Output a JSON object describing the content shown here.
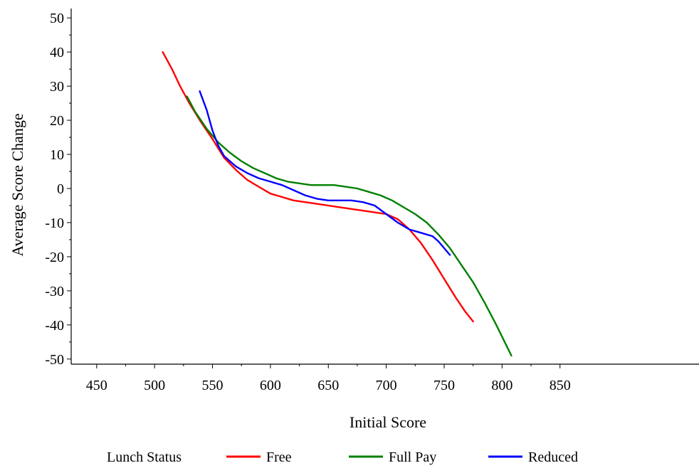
{
  "chart_data": {
    "type": "line",
    "xlabel": "Initial Score",
    "ylabel": "Average Score Change",
    "xlim": [
      428,
      970
    ],
    "ylim": [
      -51.5,
      51.5
    ],
    "x_ticks": [
      450,
      500,
      550,
      600,
      650,
      700,
      750,
      800,
      850
    ],
    "y_ticks": [
      50,
      40,
      30,
      20,
      10,
      0,
      -10,
      -20,
      -30,
      -40,
      -50
    ],
    "grid": false,
    "legend": {
      "title": "Lunch Status",
      "position": "bottom"
    },
    "series": [
      {
        "name": "Free",
        "color": "#ff0000",
        "points": [
          [
            507,
            40
          ],
          [
            515,
            35
          ],
          [
            522,
            30
          ],
          [
            530,
            25
          ],
          [
            540,
            19.5
          ],
          [
            550,
            14.5
          ],
          [
            560,
            9
          ],
          [
            570,
            5.5
          ],
          [
            580,
            2.5
          ],
          [
            590,
            0.5
          ],
          [
            600,
            -1.5
          ],
          [
            610,
            -2.5
          ],
          [
            620,
            -3.5
          ],
          [
            630,
            -4
          ],
          [
            640,
            -4.5
          ],
          [
            650,
            -5
          ],
          [
            660,
            -5.5
          ],
          [
            670,
            -6
          ],
          [
            680,
            -6.5
          ],
          [
            690,
            -7
          ],
          [
            700,
            -7.5
          ],
          [
            710,
            -9
          ],
          [
            720,
            -12
          ],
          [
            730,
            -16
          ],
          [
            740,
            -21
          ],
          [
            750,
            -26.5
          ],
          [
            760,
            -32
          ],
          [
            768,
            -36
          ],
          [
            775,
            -39
          ]
        ]
      },
      {
        "name": "Full Pay",
        "color": "#008000",
        "points": [
          [
            528,
            27
          ],
          [
            535,
            22.5
          ],
          [
            545,
            17.5
          ],
          [
            555,
            13.5
          ],
          [
            565,
            10.5
          ],
          [
            575,
            8
          ],
          [
            585,
            6
          ],
          [
            595,
            4.5
          ],
          [
            605,
            3
          ],
          [
            615,
            2
          ],
          [
            625,
            1.5
          ],
          [
            635,
            1
          ],
          [
            645,
            1
          ],
          [
            655,
            1
          ],
          [
            665,
            0.5
          ],
          [
            675,
            0
          ],
          [
            685,
            -1
          ],
          [
            695,
            -2
          ],
          [
            705,
            -3.5
          ],
          [
            715,
            -5.5
          ],
          [
            725,
            -7.5
          ],
          [
            735,
            -10
          ],
          [
            745,
            -13.5
          ],
          [
            755,
            -17.5
          ],
          [
            765,
            -22.5
          ],
          [
            775,
            -27.5
          ],
          [
            785,
            -33.5
          ],
          [
            795,
            -40
          ],
          [
            808,
            -49
          ]
        ]
      },
      {
        "name": "Reduced",
        "color": "#0000ff",
        "points": [
          [
            539,
            28.5
          ],
          [
            545,
            23
          ],
          [
            550,
            17
          ],
          [
            555,
            12.5
          ],
          [
            560,
            9.5
          ],
          [
            570,
            6.5
          ],
          [
            580,
            4.5
          ],
          [
            590,
            3
          ],
          [
            600,
            2
          ],
          [
            610,
            1
          ],
          [
            620,
            -0.5
          ],
          [
            630,
            -2
          ],
          [
            640,
            -3
          ],
          [
            650,
            -3.5
          ],
          [
            660,
            -3.5
          ],
          [
            670,
            -3.5
          ],
          [
            680,
            -4
          ],
          [
            690,
            -5
          ],
          [
            700,
            -7.5
          ],
          [
            710,
            -10
          ],
          [
            720,
            -12
          ],
          [
            730,
            -13
          ],
          [
            740,
            -14
          ],
          [
            745,
            -15.5
          ],
          [
            750,
            -17.5
          ],
          [
            755,
            -19.5
          ]
        ]
      }
    ]
  }
}
